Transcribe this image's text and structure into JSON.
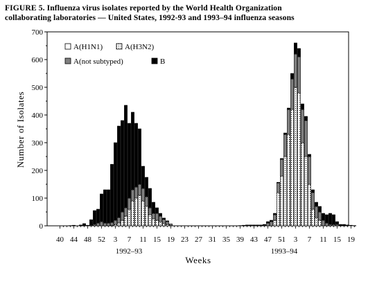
{
  "figure": {
    "title_line1": "FIGURE 5. Influenza virus isolates reported by the World Health Organization",
    "title_line2": "collaborating laboratories — United States, 1992-93 and 1993–94 influenza seasons"
  },
  "chart_data": {
    "type": "bar",
    "stacked": true,
    "title": "FIGURE 5. Influenza virus isolates reported by the World Health Organization collaborating laboratories — United States, 1992-93 and 1993–94 influenza seasons",
    "xlabel": "Weeks",
    "ylabel": "Number of Isolates",
    "ylim": [
      0,
      700
    ],
    "yticks": [
      0,
      100,
      200,
      300,
      400,
      500,
      600,
      700
    ],
    "legend": {
      "placement": "top-left",
      "columns": 2
    },
    "season_labels": [
      "1992–93",
      "1993–94"
    ],
    "series": [
      {
        "name": "A(H1N1)",
        "key": "h1n1",
        "pattern": "white"
      },
      {
        "name": "A(H3N2)",
        "key": "h3n2",
        "pattern": "sparse-dots"
      },
      {
        "name": "A(not subtyped)",
        "key": "ns",
        "pattern": "dense-dots"
      },
      {
        "name": "B",
        "key": "b",
        "pattern": "black"
      }
    ],
    "categories": [
      "40",
      "41",
      "42",
      "43",
      "44",
      "45",
      "46",
      "47",
      "48",
      "49",
      "50",
      "51",
      "52",
      "1",
      "2",
      "3",
      "4",
      "5",
      "6",
      "7",
      "8",
      "9",
      "10",
      "11",
      "12",
      "13",
      "14",
      "15",
      "16",
      "17",
      "18",
      "19",
      "20",
      "21",
      "22",
      "23",
      "24",
      "25",
      "26",
      "27",
      "28",
      "29",
      "30",
      "31",
      "32",
      "33",
      "34",
      "35",
      "36",
      "37",
      "38",
      "39",
      "40",
      "41",
      "42",
      "43",
      "44",
      "45",
      "46",
      "47",
      "48",
      "49",
      "50",
      "51",
      "52",
      "1",
      "2",
      "3",
      "4",
      "5",
      "6",
      "7",
      "8",
      "9",
      "10",
      "11",
      "12",
      "13",
      "14",
      "15",
      "16",
      "17",
      "18",
      "19",
      "20",
      "21"
    ],
    "x_tick_labels": [
      "40",
      "44",
      "48",
      "52",
      "3",
      "7",
      "11",
      "15",
      "19",
      "23",
      "27",
      "31",
      "35",
      "39",
      "43",
      "47",
      "51",
      "3",
      "7",
      "11",
      "15",
      "19"
    ],
    "values": {
      "h1n1": [
        0,
        0,
        0,
        0,
        0,
        0,
        0,
        0,
        0,
        0,
        0,
        0,
        0,
        0,
        0,
        0,
        0,
        0,
        0,
        0,
        0,
        0,
        0,
        0,
        0,
        0,
        0,
        0,
        0,
        0,
        0,
        0,
        0,
        0,
        0,
        0,
        0,
        0,
        0,
        0,
        0,
        0,
        0,
        0,
        0,
        0,
        0,
        0,
        0,
        0,
        0,
        0,
        0,
        0,
        0,
        0,
        0,
        0,
        0,
        0,
        0,
        0,
        0,
        0,
        0,
        0,
        0,
        0,
        0,
        0,
        0,
        0,
        0,
        0,
        0,
        0,
        0,
        0,
        0,
        0,
        0,
        0,
        0,
        0,
        0,
        0
      ],
      "h3n2": [
        0,
        0,
        0,
        0,
        0,
        0,
        0,
        0,
        0,
        0,
        0,
        0,
        0,
        0,
        0,
        2,
        5,
        10,
        20,
        35,
        60,
        90,
        100,
        110,
        90,
        70,
        40,
        25,
        20,
        15,
        8,
        5,
        2,
        0,
        0,
        0,
        0,
        0,
        0,
        0,
        0,
        0,
        0,
        0,
        0,
        0,
        0,
        0,
        0,
        0,
        0,
        0,
        0,
        0,
        0,
        0,
        0,
        0,
        0,
        0,
        0,
        0,
        20,
        120,
        180,
        250,
        330,
        420,
        500,
        480,
        300,
        250,
        150,
        60,
        30,
        20,
        0,
        0,
        0,
        0,
        0,
        0,
        0,
        0,
        0,
        0
      ],
      "ns": [
        0,
        0,
        0,
        0,
        0,
        0,
        0,
        0,
        0,
        2,
        5,
        10,
        15,
        10,
        10,
        10,
        15,
        20,
        30,
        30,
        40,
        40,
        40,
        40,
        45,
        35,
        25,
        20,
        25,
        20,
        15,
        10,
        5,
        0,
        0,
        0,
        0,
        0,
        0,
        0,
        0,
        0,
        0,
        0,
        0,
        0,
        0,
        0,
        0,
        0,
        0,
        0,
        0,
        0,
        0,
        0,
        0,
        0,
        0,
        2,
        10,
        15,
        20,
        35,
        60,
        80,
        90,
        110,
        120,
        130,
        120,
        130,
        100,
        60,
        40,
        30,
        20,
        10,
        5,
        5,
        5,
        0,
        0,
        0,
        0,
        0
      ],
      "b": [
        0,
        0,
        0,
        1,
        2,
        0,
        3,
        8,
        2,
        20,
        50,
        50,
        100,
        120,
        120,
        210,
        280,
        330,
        330,
        370,
        270,
        280,
        230,
        200,
        80,
        70,
        70,
        40,
        20,
        10,
        5,
        3,
        0,
        0,
        0,
        0,
        0,
        0,
        0,
        0,
        0,
        0,
        0,
        0,
        0,
        0,
        0,
        0,
        0,
        0,
        0,
        0,
        1,
        2,
        3,
        3,
        3,
        3,
        3,
        3,
        5,
        5,
        5,
        2,
        3,
        5,
        5,
        20,
        40,
        30,
        20,
        15,
        8,
        10,
        15,
        20,
        25,
        30,
        40,
        35,
        10,
        5,
        5,
        3,
        2,
        1
      ]
    }
  }
}
